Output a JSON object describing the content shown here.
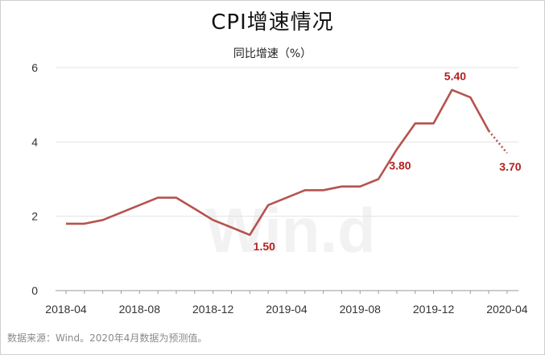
{
  "title": "CPI增速情况",
  "subtitle": "同比增速（%）",
  "source_note": "数据来源：Wind。2020年4月数据为预测值。",
  "watermark": "Win.d",
  "colors": {
    "line": "#b5534e",
    "label": "#b3211f",
    "grid": "#e3e3e3"
  },
  "chart_data": {
    "type": "line",
    "title": "CPI增速情况",
    "ylabel": "同比增速（%）",
    "ylim": [
      0,
      6
    ],
    "yticks": [
      "0",
      "2",
      "4",
      "6"
    ],
    "xticks": [
      "2018-04",
      "2018-08",
      "2018-12",
      "2019-04",
      "2019-08",
      "2019-12",
      "2020-04"
    ],
    "x": [
      "2018-04",
      "2018-05",
      "2018-06",
      "2018-07",
      "2018-08",
      "2018-09",
      "2018-10",
      "2018-11",
      "2018-12",
      "2019-01",
      "2019-02",
      "2019-03",
      "2019-04",
      "2019-05",
      "2019-06",
      "2019-07",
      "2019-08",
      "2019-09",
      "2019-10",
      "2019-11",
      "2019-12",
      "2020-01",
      "2020-02",
      "2020-03",
      "2020-04"
    ],
    "values": [
      1.8,
      1.8,
      1.9,
      2.1,
      2.3,
      2.5,
      2.5,
      2.2,
      1.9,
      1.7,
      1.5,
      2.3,
      2.5,
      2.7,
      2.7,
      2.8,
      2.8,
      3.0,
      3.8,
      4.5,
      4.5,
      5.4,
      5.2,
      4.3,
      3.7
    ],
    "forecast_from": "2020-03",
    "grid": "horizontal",
    "data_labels": [
      {
        "x": "2019-02",
        "text": "1.50"
      },
      {
        "x": "2019-10",
        "text": "3.80"
      },
      {
        "x": "2020-01",
        "text": "5.40"
      },
      {
        "x": "2020-04",
        "text": "3.70"
      }
    ]
  }
}
